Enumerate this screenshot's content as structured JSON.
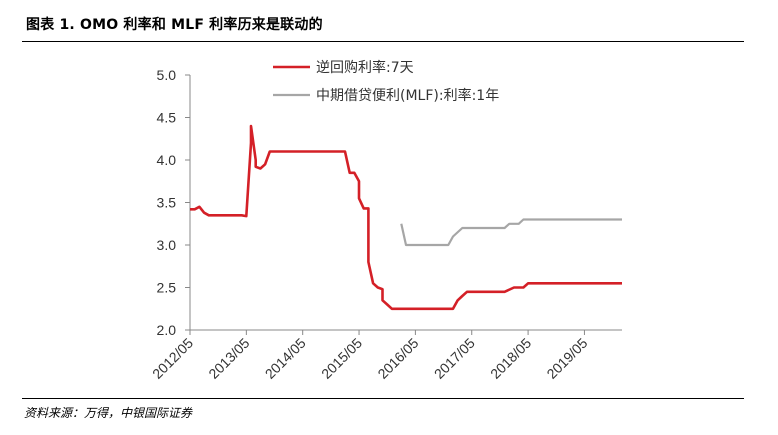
{
  "header": {
    "caption": "图表 1. OMO 利率和 MLF 利率历来是联动的"
  },
  "footer": {
    "source": "资料来源：万得，中银国际证券"
  },
  "chart_data": {
    "type": "line",
    "title": "",
    "xlabel": "",
    "ylabel": "",
    "ylim": [
      2.0,
      5.0
    ],
    "yticks": [
      "2.0",
      "2.5",
      "3.0",
      "3.5",
      "4.0",
      "4.5",
      "5.0"
    ],
    "xticks": [
      "2012/05",
      "2013/05",
      "2014/05",
      "2015/05",
      "2016/05",
      "2017/05",
      "2018/05",
      "2019/05"
    ],
    "xlim": [
      "2012/05",
      "2020/01"
    ],
    "grid": false,
    "legend": "top-right",
    "colors": {
      "omo": "#d42027",
      "mlf": "#a6a6a6"
    },
    "series": [
      {
        "name": "逆回购利率:7天",
        "points": [
          [
            "2012/05",
            3.42
          ],
          [
            "2012/06",
            3.42
          ],
          [
            "2012/07",
            3.45
          ],
          [
            "2012/08",
            3.38
          ],
          [
            "2012/09",
            3.35
          ],
          [
            "2013/02",
            3.35
          ],
          [
            "2013/04",
            3.35
          ],
          [
            "2013/05",
            3.34
          ],
          [
            "2013/06",
            4.2
          ],
          [
            "2013/06",
            4.4
          ],
          [
            "2013/07",
            4.0
          ],
          [
            "2013/07",
            3.92
          ],
          [
            "2013/08",
            3.9
          ],
          [
            "2013/09",
            3.95
          ],
          [
            "2013/10",
            4.1
          ],
          [
            "2013/12",
            4.1
          ],
          [
            "2014/05",
            4.1
          ],
          [
            "2014/12",
            4.1
          ],
          [
            "2015/02",
            4.1
          ],
          [
            "2015/02",
            4.1
          ],
          [
            "2015/03",
            3.85
          ],
          [
            "2015/04",
            3.85
          ],
          [
            "2015/05",
            3.75
          ],
          [
            "2015/05",
            3.55
          ],
          [
            "2015/06",
            3.43
          ],
          [
            "2015/07",
            3.43
          ],
          [
            "2015/07",
            2.8
          ],
          [
            "2015/08",
            2.55
          ],
          [
            "2015/09",
            2.5
          ],
          [
            "2015/10",
            2.48
          ],
          [
            "2015/10",
            2.35
          ],
          [
            "2015/11",
            2.3
          ],
          [
            "2015/12",
            2.25
          ],
          [
            "2016/05",
            2.25
          ],
          [
            "2016/12",
            2.25
          ],
          [
            "2017/01",
            2.25
          ],
          [
            "2017/02",
            2.35
          ],
          [
            "2017/03",
            2.4
          ],
          [
            "2017/04",
            2.45
          ],
          [
            "2017/06",
            2.45
          ],
          [
            "2017/12",
            2.45
          ],
          [
            "2018/02",
            2.5
          ],
          [
            "2018/04",
            2.5
          ],
          [
            "2018/05",
            2.55
          ],
          [
            "2018/08",
            2.55
          ],
          [
            "2019/05",
            2.55
          ],
          [
            "2020/01",
            2.55
          ]
        ]
      },
      {
        "name": "中期借贷便利(MLF):利率:1年",
        "points": [
          [
            "2016/02",
            3.25
          ],
          [
            "2016/03",
            3.0
          ],
          [
            "2016/05",
            3.0
          ],
          [
            "2016/12",
            3.0
          ],
          [
            "2017/01",
            3.1
          ],
          [
            "2017/03",
            3.2
          ],
          [
            "2017/05",
            3.2
          ],
          [
            "2017/12",
            3.2
          ],
          [
            "2018/01",
            3.25
          ],
          [
            "2018/03",
            3.25
          ],
          [
            "2018/04",
            3.3
          ],
          [
            "2018/05",
            3.3
          ],
          [
            "2019/05",
            3.3
          ],
          [
            "2020/01",
            3.3
          ]
        ]
      }
    ]
  }
}
